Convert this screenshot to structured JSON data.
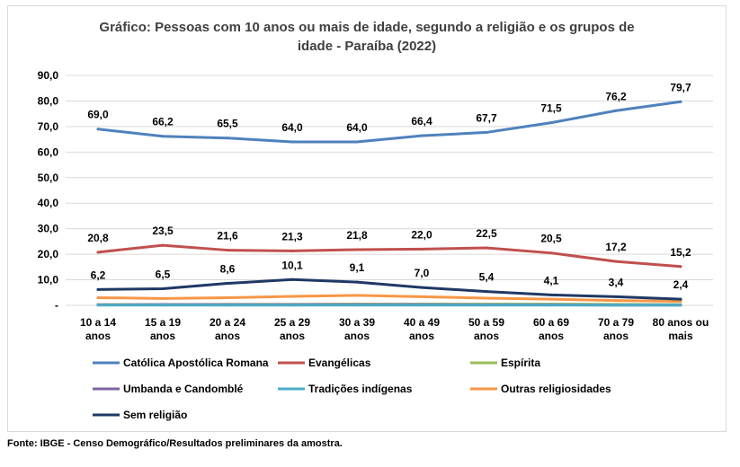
{
  "chart_data": {
    "type": "line",
    "title_lines": [
      "Gráfico: Pessoas com 10 anos ou mais de idade, segundo a religião e os grupos de",
      "idade - Paraíba (2022)"
    ],
    "categories": [
      [
        "10 a 14",
        "anos"
      ],
      [
        "15 a 19",
        "anos"
      ],
      [
        "20 a 24",
        "anos"
      ],
      [
        "25 a 29",
        "anos"
      ],
      [
        "30 a 39",
        "anos"
      ],
      [
        "40 a 49",
        "anos"
      ],
      [
        "50 a 59",
        "anos"
      ],
      [
        "60 a 69",
        "anos"
      ],
      [
        "70 a 79",
        "anos"
      ],
      [
        "80 anos ou",
        "mais"
      ]
    ],
    "yticks": [
      "-",
      "10,0",
      "20,0",
      "30,0",
      "40,0",
      "50,0",
      "60,0",
      "70,0",
      "80,0",
      "90,0"
    ],
    "ylim": [
      0,
      90
    ],
    "grid": true,
    "legend_position": "bottom",
    "series": [
      {
        "name": "Católica Apostólica Romana",
        "color": "#4f81bd",
        "labeled": true,
        "values": [
          69.0,
          66.2,
          65.5,
          64.0,
          64.0,
          66.4,
          67.7,
          71.5,
          76.2,
          79.7
        ],
        "labels": [
          "69,0",
          "66,2",
          "65,5",
          "64,0",
          "64,0",
          "66,4",
          "67,7",
          "71,5",
          "76,2",
          "79,7"
        ]
      },
      {
        "name": "Evangélicas",
        "color": "#c0504d",
        "labeled": true,
        "values": [
          20.8,
          23.5,
          21.6,
          21.3,
          21.8,
          22.0,
          22.5,
          20.5,
          17.2,
          15.2
        ],
        "labels": [
          "20,8",
          "23,5",
          "21,6",
          "21,3",
          "21,8",
          "22,0",
          "22,5",
          "20,5",
          "17,2",
          "15,2"
        ]
      },
      {
        "name": "Espírita",
        "color": "#9bbb59",
        "labeled": false,
        "values": [
          0.3,
          0.3,
          0.4,
          0.4,
          0.5,
          0.5,
          0.5,
          0.5,
          0.4,
          0.3
        ]
      },
      {
        "name": "Umbanda e Candomblé",
        "color": "#8064a2",
        "labeled": false,
        "values": [
          0.2,
          0.3,
          0.3,
          0.3,
          0.3,
          0.3,
          0.2,
          0.2,
          0.1,
          0.1
        ]
      },
      {
        "name": "Tradições indígenas",
        "color": "#4bacc6",
        "labeled": false,
        "values": [
          0.1,
          0.1,
          0.1,
          0.1,
          0.1,
          0.1,
          0.1,
          0.1,
          0.1,
          0.1
        ]
      },
      {
        "name": "Outras religiosidades",
        "color": "#f79646",
        "labeled": false,
        "values": [
          3.0,
          2.7,
          3.0,
          3.5,
          3.9,
          3.4,
          2.8,
          2.4,
          1.9,
          1.6
        ]
      },
      {
        "name": "Sem religião",
        "color": "#1f3864",
        "labeled": true,
        "values": [
          6.2,
          6.5,
          8.6,
          10.1,
          9.1,
          7.0,
          5.4,
          4.1,
          3.4,
          2.4
        ],
        "labels": [
          "6,2",
          "6,5",
          "8,6",
          "10,1",
          "9,1",
          "7,0",
          "5,4",
          "4,1",
          "3,4",
          "2,4"
        ]
      }
    ]
  },
  "source_text": "Fonte: IBGE - Censo Demográfico/Resultados preliminares da amostra."
}
